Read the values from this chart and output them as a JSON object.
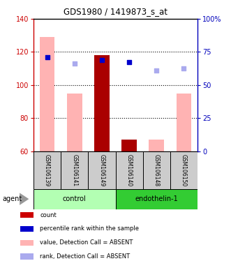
{
  "title": "GDS1980 / 1419873_s_at",
  "samples": [
    "GSM106139",
    "GSM106141",
    "GSM106149",
    "GSM106140",
    "GSM106148",
    "GSM106150"
  ],
  "ylim_left": [
    60,
    140
  ],
  "ylim_right": [
    0,
    100
  ],
  "yticks_left": [
    60,
    80,
    100,
    120,
    140
  ],
  "yticks_right": [
    0,
    25,
    50,
    75,
    100
  ],
  "ytick_labels_right": [
    "0",
    "25",
    "50",
    "75",
    "100%"
  ],
  "bar_values": [
    129,
    95,
    118,
    67,
    67,
    95
  ],
  "bar_colors": [
    "#ffb3b3",
    "#ffb3b3",
    "#aa0000",
    "#aa0000",
    "#ffb3b3",
    "#ffb3b3"
  ],
  "dot_values": [
    117,
    113,
    115,
    114,
    109,
    110
  ],
  "dot_colors": [
    "#0000cc",
    "#aaaaee",
    "#0000cc",
    "#0000cc",
    "#aaaaee",
    "#aaaaee"
  ],
  "left_axis_color": "#cc0000",
  "right_axis_color": "#0000bb",
  "group_control_color": "#b3ffb3",
  "group_endothelin_color": "#33cc33",
  "sample_bg_color": "#cccccc",
  "legend_items": [
    {
      "label": "count",
      "color": "#cc0000"
    },
    {
      "label": "percentile rank within the sample",
      "color": "#0000cc"
    },
    {
      "label": "value, Detection Call = ABSENT",
      "color": "#ffb3b3"
    },
    {
      "label": "rank, Detection Call = ABSENT",
      "color": "#aaaaee"
    }
  ]
}
